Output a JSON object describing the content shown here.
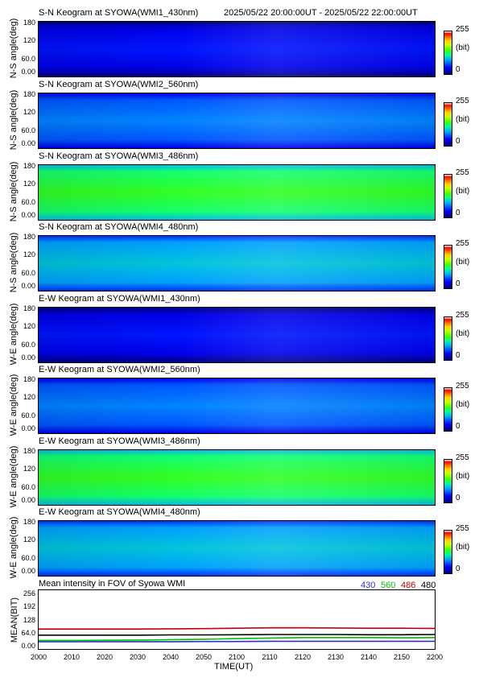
{
  "header": {
    "time_range": "2025/05/22 20:00:00UT - 2025/05/22 22:00:00UT"
  },
  "colorbar": {
    "max_label": "255",
    "unit_label": "(bit)",
    "min_label": "0"
  },
  "keograms": [
    {
      "title": "S-N Keogram at SYOWA(WMI1_430nm)",
      "ylabel": "N-S angle(deg)",
      "level": 0.12
    },
    {
      "title": "S-N Keogram at SYOWA(WMI2_560nm)",
      "ylabel": "N-S angle(deg)",
      "level": 0.24
    },
    {
      "title": "S-N Keogram at SYOWA(WMI3_486nm)",
      "ylabel": "N-S angle(deg)",
      "level": 0.48
    },
    {
      "title": "S-N Keogram at SYOWA(WMI4_480nm)",
      "ylabel": "N-S angle(deg)",
      "level": 0.32
    },
    {
      "title": "E-W Keogram at SYOWA(WMI1_430nm)",
      "ylabel": "W-E angle(deg)",
      "level": 0.12
    },
    {
      "title": "E-W Keogram at SYOWA(WMI2_560nm)",
      "ylabel": "W-E angle(deg)",
      "level": 0.24
    },
    {
      "title": "E-W Keogram at SYOWA(WMI3_486nm)",
      "ylabel": "W-E angle(deg)",
      "level": 0.48
    },
    {
      "title": "E-W Keogram at SYOWA(WMI4_480nm)",
      "ylabel": "W-E angle(deg)",
      "level": 0.32
    }
  ],
  "keogram_yticks": [
    "180",
    "120",
    "60.0",
    "0.00"
  ],
  "chart_data": {
    "type": "line",
    "title": "Mean intensity in FOV of Syowa WMI",
    "xlabel": "TIME(UT)",
    "ylabel": "MEAN(BIT)",
    "x": [
      2000,
      2010,
      2020,
      2030,
      2040,
      2050,
      2100,
      2110,
      2120,
      2130,
      2140,
      2150,
      2200
    ],
    "xticks": [
      "2000",
      "2010",
      "2020",
      "2030",
      "2040",
      "2050",
      "2100",
      "2110",
      "2120",
      "2130",
      "2140",
      "2150",
      "2200"
    ],
    "yticks": [
      "256",
      "192",
      "128",
      "64.0",
      "0.00"
    ],
    "ylim": [
      0,
      256
    ],
    "series": [
      {
        "name": "430",
        "color": "#3030c0",
        "values": [
          20,
          20,
          20,
          20,
          20,
          21,
          21,
          22,
          22,
          22,
          22,
          22,
          22
        ]
      },
      {
        "name": "560",
        "color": "#00c000",
        "values": [
          26,
          26,
          27,
          28,
          30,
          32,
          35,
          38,
          40,
          40,
          40,
          39,
          40
        ]
      },
      {
        "name": "486",
        "color": "#c00000",
        "values": [
          82,
          82,
          82,
          82,
          83,
          84,
          86,
          88,
          88,
          87,
          86,
          86,
          85
        ]
      },
      {
        "name": "480",
        "color": "#000000",
        "values": [
          52,
          52,
          52,
          52,
          53,
          53,
          54,
          55,
          55,
          55,
          54,
          54,
          55
        ]
      }
    ]
  }
}
